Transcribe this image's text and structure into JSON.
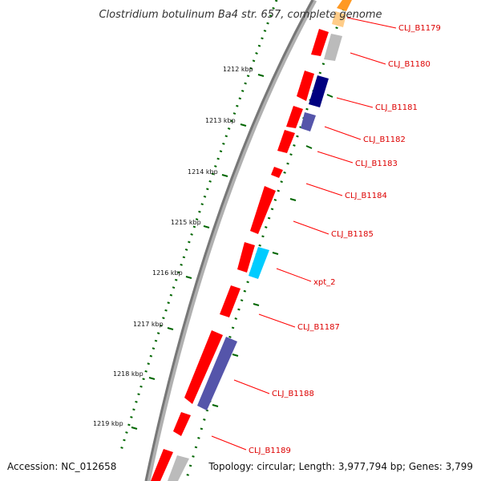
{
  "title": "Clostridium botulinum Ba4 str. 657, complete genome",
  "accession": "Accession: NC_012658",
  "topology": "Topology: circular; Length: 3,977,794 bp; Genes: 3,799",
  "colors": {
    "backbone": "#888888",
    "forward_gene": "#ff0000",
    "dark_blue_gene": "#000080",
    "slate_gene": "#5555aa",
    "cyan_gene": "#00ccff",
    "grey_gene": "#bbbbbb",
    "orange_gene": "#ff8800",
    "tick_green": "#006600",
    "label_red": "#dd0000"
  },
  "kbp_labels": [
    "1212 kbp",
    "1213 kbp",
    "1214 kbp",
    "1215 kbp",
    "1216 kbp",
    "1217 kbp",
    "1218 kbp",
    "1219 kbp"
  ],
  "gene_labels": [
    "CLJ_B1179",
    "CLJ_B1180",
    "CLJ_B1181",
    "CLJ_B1182",
    "CLJ_B1183",
    "CLJ_B1184",
    "CLJ_B1185",
    "xpt_2",
    "CLJ_B1187",
    "CLJ_B1188",
    "CLJ_B1189"
  ]
}
